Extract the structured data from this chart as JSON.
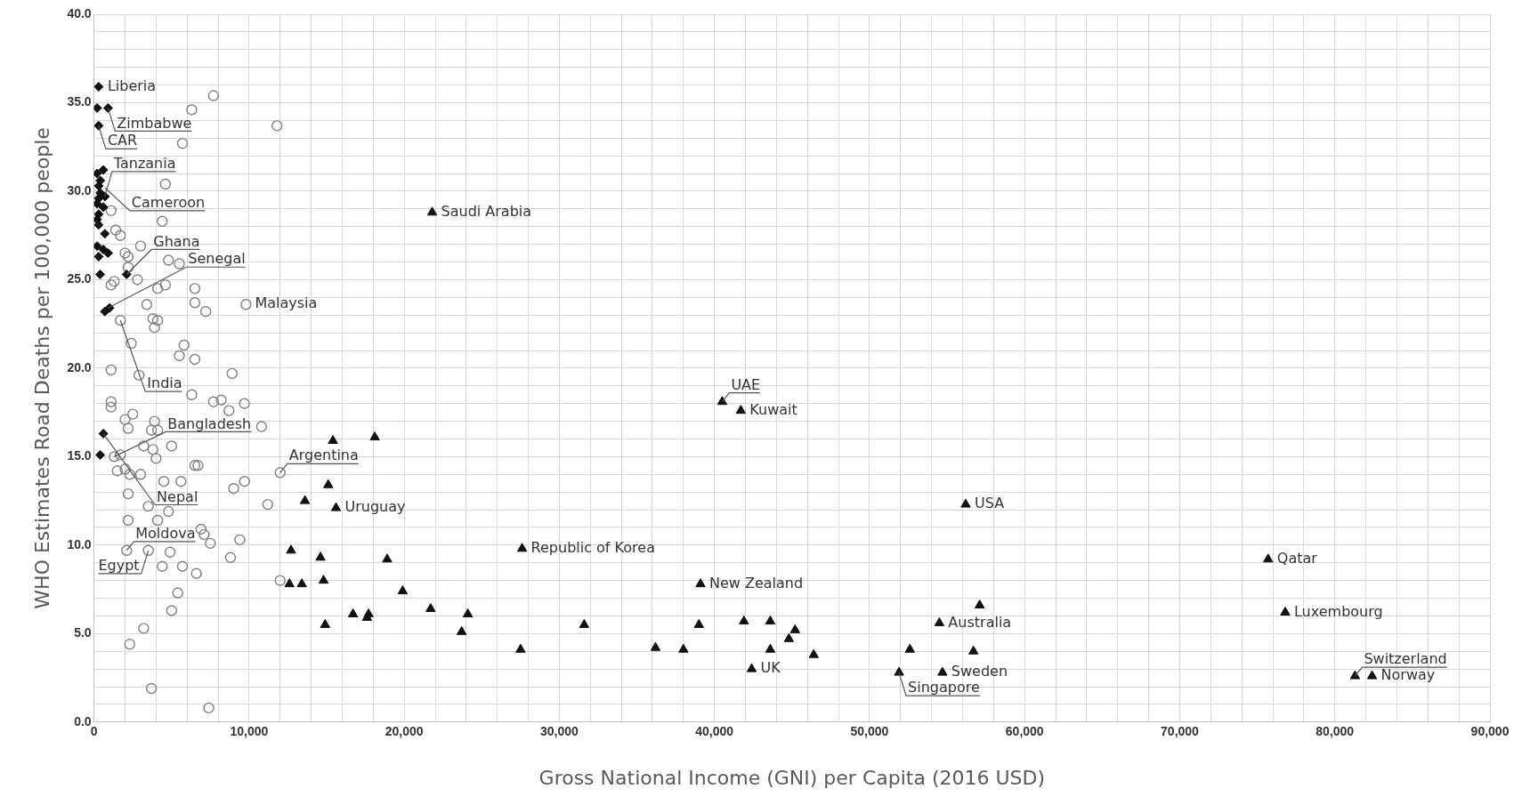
{
  "chart_data": {
    "type": "scatter",
    "xlabel": "Gross National Income (GNI) per Capita (2016 USD)",
    "ylabel": "WHO Estimates Road Deaths per 100,000 people",
    "xlim": [
      0,
      90000
    ],
    "ylim": [
      0,
      40
    ],
    "xticks": [
      {
        "value": 0,
        "label": "0"
      },
      {
        "value": 2000,
        "label": null
      },
      {
        "value": 4000,
        "label": null
      },
      {
        "value": 6000,
        "label": null
      },
      {
        "value": 8000,
        "label": null
      },
      {
        "value": 10000,
        "label": "10,000"
      },
      {
        "value": 12000,
        "label": null
      },
      {
        "value": 14000,
        "label": null
      },
      {
        "value": 16000,
        "label": null
      },
      {
        "value": 18000,
        "label": null
      },
      {
        "value": 20000,
        "label": "20,000"
      },
      {
        "value": 22000,
        "label": null
      },
      {
        "value": 24000,
        "label": null
      },
      {
        "value": 26000,
        "label": null
      },
      {
        "value": 28000,
        "label": null
      },
      {
        "value": 30000,
        "label": "30,000"
      },
      {
        "value": 32000,
        "label": null
      },
      {
        "value": 34000,
        "label": null
      },
      {
        "value": 36000,
        "label": null
      },
      {
        "value": 38000,
        "label": null
      },
      {
        "value": 40000,
        "label": "40,000"
      },
      {
        "value": 42000,
        "label": null
      },
      {
        "value": 44000,
        "label": null
      },
      {
        "value": 46000,
        "label": null
      },
      {
        "value": 48000,
        "label": null
      },
      {
        "value": 50000,
        "label": "50,000"
      },
      {
        "value": 52000,
        "label": null
      },
      {
        "value": 54000,
        "label": null
      },
      {
        "value": 56000,
        "label": null
      },
      {
        "value": 58000,
        "label": null
      },
      {
        "value": 60000,
        "label": "60,000"
      },
      {
        "value": 62000,
        "label": null
      },
      {
        "value": 64000,
        "label": null
      },
      {
        "value": 66000,
        "label": null
      },
      {
        "value": 68000,
        "label": null
      },
      {
        "value": 70000,
        "label": "70,000"
      },
      {
        "value": 72000,
        "label": null
      },
      {
        "value": 74000,
        "label": null
      },
      {
        "value": 76000,
        "label": null
      },
      {
        "value": 78000,
        "label": null
      },
      {
        "value": 80000,
        "label": "80,000"
      },
      {
        "value": 82000,
        "label": null
      },
      {
        "value": 84000,
        "label": null
      },
      {
        "value": 86000,
        "label": null
      },
      {
        "value": 88000,
        "label": null
      },
      {
        "value": 90000,
        "label": "90,000"
      }
    ],
    "yticks": [
      {
        "value": 0,
        "label": "0.0"
      },
      {
        "value": 1,
        "label": null
      },
      {
        "value": 2,
        "label": null
      },
      {
        "value": 3,
        "label": null
      },
      {
        "value": 4,
        "label": null
      },
      {
        "value": 5,
        "label": "5.0"
      },
      {
        "value": 6,
        "label": null
      },
      {
        "value": 7,
        "label": null
      },
      {
        "value": 8,
        "label": null
      },
      {
        "value": 9,
        "label": null
      },
      {
        "value": 10,
        "label": "10.0"
      },
      {
        "value": 11,
        "label": null
      },
      {
        "value": 12,
        "label": null
      },
      {
        "value": 13,
        "label": null
      },
      {
        "value": 14,
        "label": null
      },
      {
        "value": 15,
        "label": "15.0"
      },
      {
        "value": 16,
        "label": null
      },
      {
        "value": 17,
        "label": null
      },
      {
        "value": 18,
        "label": null
      },
      {
        "value": 19,
        "label": null
      },
      {
        "value": 20,
        "label": "20.0"
      },
      {
        "value": 21,
        "label": null
      },
      {
        "value": 22,
        "label": null
      },
      {
        "value": 23,
        "label": null
      },
      {
        "value": 24,
        "label": null
      },
      {
        "value": 25,
        "label": "25.0"
      },
      {
        "value": 26,
        "label": null
      },
      {
        "value": 27,
        "label": null
      },
      {
        "value": 28,
        "label": null
      },
      {
        "value": 29,
        "label": null
      },
      {
        "value": 30,
        "label": "30.0"
      },
      {
        "value": 31,
        "label": null
      },
      {
        "value": 32,
        "label": null
      },
      {
        "value": 33,
        "label": null
      },
      {
        "value": 34,
        "label": null
      },
      {
        "value": 35,
        "label": "35.0"
      },
      {
        "value": 36,
        "label": null
      },
      {
        "value": 37,
        "label": null
      },
      {
        "value": 38,
        "label": null
      },
      {
        "value": 39,
        "label": null
      },
      {
        "value": 40,
        "label": "40.0"
      }
    ],
    "grid": true,
    "legend": false,
    "series": [
      {
        "color": "#111111",
        "marker": "diamond",
        "x": [
          300,
          200,
          900,
          300,
          200,
          600,
          400,
          300,
          400,
          300,
          700,
          200,
          600,
          300,
          200,
          300,
          700,
          200,
          600,
          300,
          900,
          400,
          700,
          1000,
          600,
          400,
          2100
        ],
        "values": [
          35.9,
          34.7,
          34.7,
          33.7,
          31.0,
          31.2,
          30.6,
          30.3,
          29.9,
          29.6,
          29.7,
          29.3,
          29.1,
          28.7,
          28.4,
          28.1,
          27.6,
          26.9,
          26.7,
          26.3,
          26.5,
          25.3,
          23.2,
          23.4,
          16.3,
          15.1,
          25.3
        ]
      },
      {
        "color": "#808080",
        "marker": "circle",
        "x": [
          7700,
          6300,
          11800,
          5700,
          4600,
          1100,
          4400,
          1400,
          1700,
          3000,
          2000,
          2200,
          4800,
          5500,
          2200,
          2800,
          1100,
          1300,
          4100,
          4600,
          6500,
          3400,
          9800,
          6500,
          7200,
          1700,
          3800,
          4100,
          3900,
          2400,
          5800,
          5500,
          6500,
          1100,
          2900,
          8900,
          6300,
          1100,
          1100,
          7700,
          8200,
          8700,
          9700,
          2000,
          2500,
          3900,
          4100,
          3700,
          2200,
          10800,
          5000,
          3200,
          4000,
          3800,
          1700,
          1300,
          1500,
          2300,
          3000,
          2000,
          4500,
          5600,
          6500,
          6700,
          9700,
          9000,
          11200,
          12000,
          2200,
          3500,
          2200,
          4100,
          4800,
          6900,
          7100,
          7500,
          9400,
          2100,
          3500,
          4900,
          4400,
          5700,
          6600,
          8800,
          12000,
          5400,
          5000,
          3200,
          2300,
          3700,
          7400
        ],
        "values": [
          35.4,
          34.6,
          33.7,
          32.7,
          30.4,
          28.9,
          28.3,
          27.8,
          27.5,
          26.9,
          26.5,
          26.3,
          26.1,
          25.9,
          25.7,
          25.0,
          24.7,
          24.9,
          24.5,
          24.7,
          24.5,
          23.6,
          23.6,
          23.7,
          23.2,
          22.7,
          22.8,
          22.7,
          22.3,
          21.4,
          21.3,
          20.7,
          20.5,
          19.9,
          19.6,
          19.7,
          18.5,
          18.1,
          17.8,
          18.1,
          18.2,
          17.6,
          18.0,
          17.1,
          17.4,
          17.0,
          16.5,
          16.5,
          16.6,
          16.7,
          15.6,
          15.6,
          14.9,
          15.4,
          15.1,
          15.0,
          14.2,
          14.0,
          14.0,
          14.3,
          13.6,
          13.6,
          14.5,
          14.5,
          13.6,
          13.2,
          12.3,
          14.1,
          12.9,
          12.2,
          11.4,
          11.4,
          11.9,
          10.9,
          10.6,
          10.1,
          10.3,
          9.7,
          9.7,
          9.6,
          8.8,
          8.8,
          8.4,
          9.3,
          8.0,
          7.3,
          6.3,
          5.3,
          4.4,
          1.9,
          0.8
        ]
      },
      {
        "color": "#111111",
        "marker": "triangle",
        "x": [
          21800,
          15400,
          18100,
          15100,
          13600,
          15600,
          12700,
          14600,
          18900,
          12600,
          13400,
          14800,
          14900,
          19900,
          16700,
          17600,
          17700,
          21700,
          24100,
          23700,
          27600,
          27500,
          31600,
          36200,
          38000,
          39100,
          39000,
          40500,
          41700,
          41900,
          42400,
          43600,
          43600,
          44800,
          45200,
          46400,
          56200,
          52600,
          54500,
          51900,
          54700,
          57100,
          56700,
          75700,
          76800,
          81300,
          82400
        ],
        "values": [
          28.8,
          15.9,
          16.1,
          13.4,
          12.5,
          12.1,
          9.7,
          9.3,
          9.2,
          7.8,
          7.8,
          8.0,
          5.5,
          7.4,
          6.1,
          5.9,
          6.1,
          6.4,
          6.1,
          5.1,
          9.8,
          4.1,
          5.5,
          4.2,
          4.1,
          7.8,
          5.5,
          18.1,
          17.6,
          5.7,
          3.0,
          5.7,
          4.1,
          4.7,
          5.2,
          3.8,
          12.3,
          4.1,
          5.6,
          2.8,
          2.8,
          6.6,
          4.0,
          9.2,
          6.2,
          2.6,
          2.6
        ]
      }
    ],
    "annotations": [
      {
        "text": "Liberia",
        "x": 300,
        "y": 35.9
      },
      {
        "text": "Zimbabwe",
        "x": 900,
        "y": 34.7
      },
      {
        "text": "CAR",
        "x": 300,
        "y": 33.7
      },
      {
        "text": "Cameroon",
        "x": 700,
        "y": 30.2
      },
      {
        "text": "Tanzania",
        "x": 700,
        "y": 29.7
      },
      {
        "text": "Ghana",
        "x": 2100,
        "y": 25.3
      },
      {
        "text": "Senegal",
        "x": 900,
        "y": 23.4
      },
      {
        "text": "Malaysia",
        "x": 9800,
        "y": 23.6
      },
      {
        "text": "India",
        "x": 1700,
        "y": 22.7
      },
      {
        "text": "Nepal",
        "x": 600,
        "y": 16.3
      },
      {
        "text": "Bangladesh",
        "x": 1300,
        "y": 15.0
      },
      {
        "text": "Argentina",
        "x": 12000,
        "y": 14.1
      },
      {
        "text": "Uruguay",
        "x": 15600,
        "y": 12.1
      },
      {
        "text": "Moldova",
        "x": 2100,
        "y": 9.7
      },
      {
        "text": "Egypt",
        "x": 3500,
        "y": 9.7
      },
      {
        "text": "Saudi Arabia",
        "x": 21800,
        "y": 28.8
      },
      {
        "text": "Republic of Korea",
        "x": 27600,
        "y": 9.8
      },
      {
        "text": "UAE",
        "x": 40500,
        "y": 18.1
      },
      {
        "text": "Kuwait",
        "x": 41700,
        "y": 17.6
      },
      {
        "text": "New Zealand",
        "x": 39100,
        "y": 7.8
      },
      {
        "text": "UK",
        "x": 42400,
        "y": 3.0
      },
      {
        "text": "USA",
        "x": 56200,
        "y": 12.3
      },
      {
        "text": "Australia",
        "x": 54500,
        "y": 5.6
      },
      {
        "text": "Singapore",
        "x": 51900,
        "y": 2.8
      },
      {
        "text": "Sweden",
        "x": 54700,
        "y": 2.8
      },
      {
        "text": "Qatar",
        "x": 75700,
        "y": 9.2
      },
      {
        "text": "Luxembourg",
        "x": 76800,
        "y": 6.2
      },
      {
        "text": "Switzerland",
        "x": 81300,
        "y": 2.6
      },
      {
        "text": "Norway",
        "x": 82400,
        "y": 2.6
      }
    ]
  }
}
